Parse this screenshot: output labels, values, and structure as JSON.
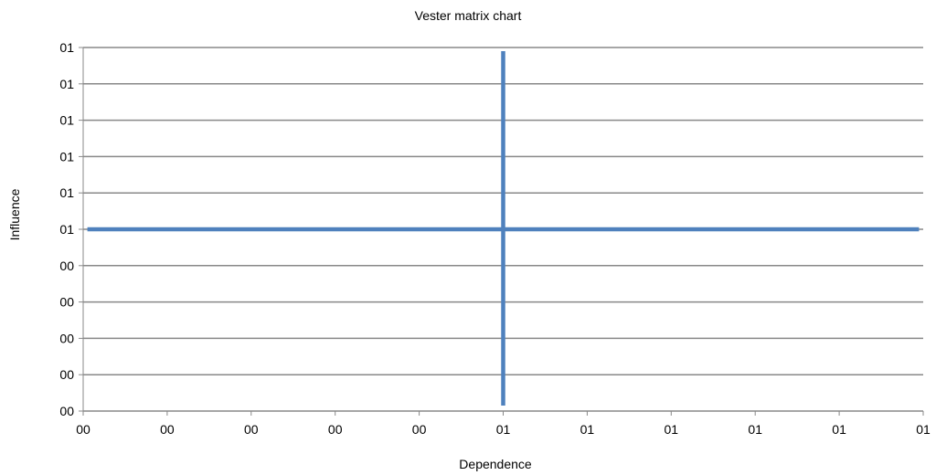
{
  "chart_data": {
    "type": "line",
    "title": "Vester matrix chart",
    "xlabel": "Dependence",
    "ylabel": "Influence",
    "x_tick_labels": [
      "00",
      "00",
      "00",
      "00",
      "00",
      "01",
      "01",
      "01",
      "01",
      "01",
      "01"
    ],
    "y_tick_labels": [
      "00",
      "00",
      "00",
      "00",
      "00",
      "01",
      "01",
      "01",
      "01",
      "01",
      "01"
    ],
    "xlim": [
      0,
      10
    ],
    "ylim": [
      0,
      10
    ],
    "grid": "horizontal",
    "series_color": "#4f81bd",
    "series": [
      {
        "x": [
          0.05,
          9.95
        ],
        "y": [
          5,
          5
        ]
      },
      {
        "x": [
          5,
          5
        ],
        "y": [
          0.15,
          9.9
        ]
      }
    ]
  }
}
